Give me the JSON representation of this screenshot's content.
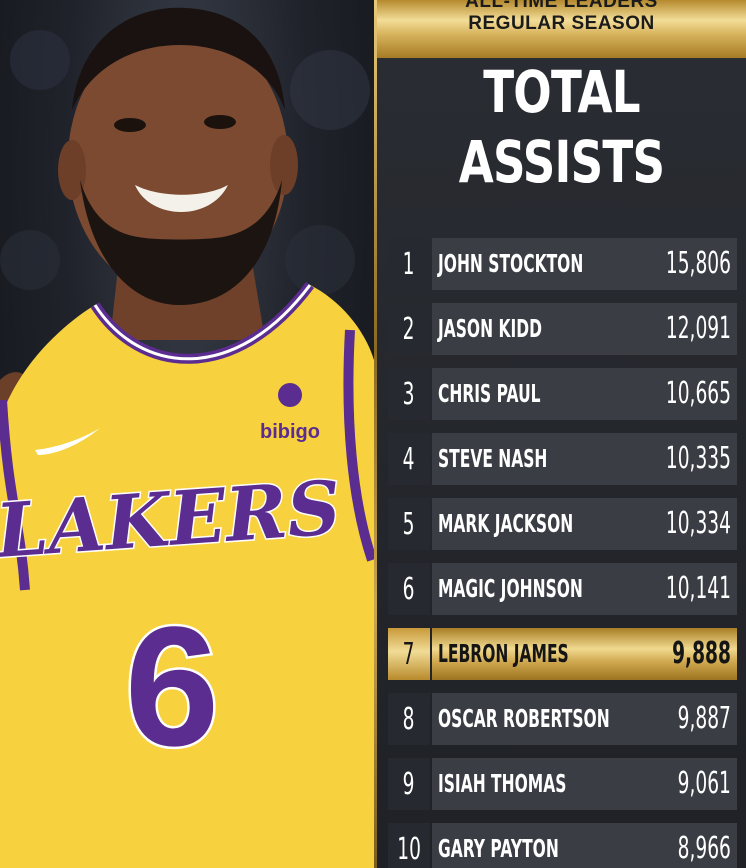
{
  "header": {
    "banner_line1": "ALL-TIME LEADERS",
    "banner_line2": "REGULAR SEASON",
    "title_line1": "TOTAL",
    "title_line2": "ASSISTS"
  },
  "photo": {
    "jersey_team": "LAKERS",
    "jersey_number": "6",
    "sponsor": "bibigo"
  },
  "leaders": [
    {
      "rank": "1",
      "name": "JOHN STOCKTON",
      "assists": "15,806"
    },
    {
      "rank": "2",
      "name": "JASON KIDD",
      "assists": "12,091"
    },
    {
      "rank": "3",
      "name": "CHRIS PAUL",
      "assists": "10,665"
    },
    {
      "rank": "4",
      "name": "STEVE NASH",
      "assists": "10,335"
    },
    {
      "rank": "5",
      "name": "MARK JACKSON",
      "assists": "10,334"
    },
    {
      "rank": "6",
      "name": "MAGIC JOHNSON",
      "assists": "10,141"
    },
    {
      "rank": "7",
      "name": "LEBRON JAMES",
      "assists": "9,888"
    },
    {
      "rank": "8",
      "name": "OSCAR ROBERTSON",
      "assists": "9,887"
    },
    {
      "rank": "9",
      "name": "ISIAH THOMAS",
      "assists": "9,061"
    },
    {
      "rank": "10",
      "name": "GARY PAYTON",
      "assists": "8,966"
    }
  ],
  "highlight_rank": "7",
  "colors": {
    "gold": "#d6b15b",
    "row_bg": "#3a3d44",
    "rank_bg": "#26292f",
    "jersey_yellow": "#f7d23e",
    "jersey_purple": "#5b2d90"
  }
}
